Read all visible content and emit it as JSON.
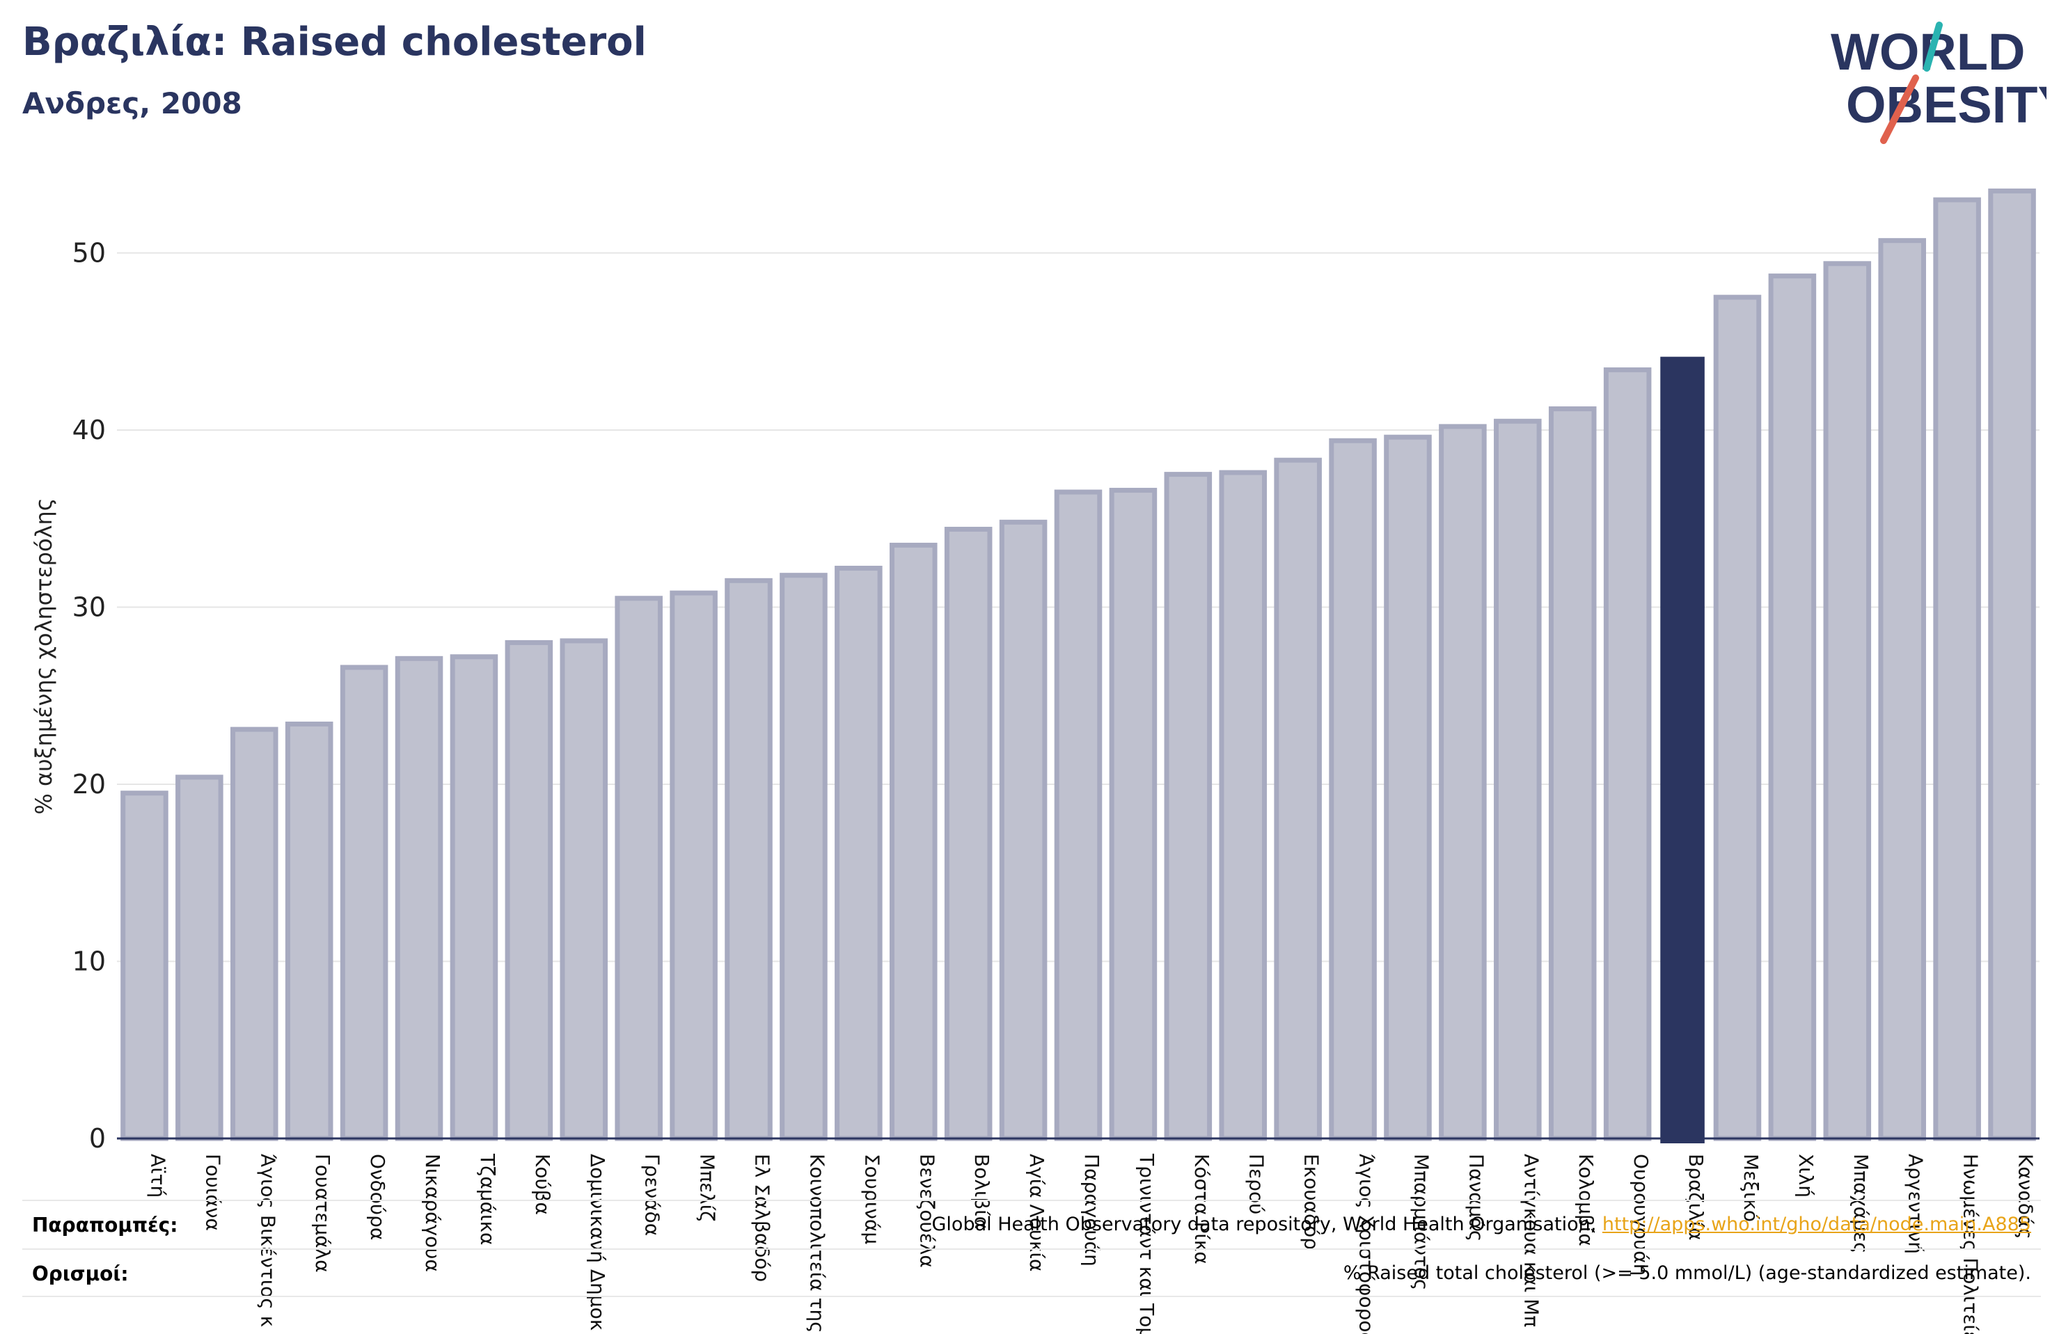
{
  "header": {
    "title": "Βραζιλία: Raised cholesterol",
    "subtitle": "Ανδρες, 2008"
  },
  "logo": {
    "line1": "WORLD",
    "line2": "OBESITY"
  },
  "colors": {
    "highlight": "#2b3560",
    "bar_fill": "#bfc1cf",
    "bar_stroke": "#a7aac0",
    "grid": "#e6e6e6",
    "axis": "#2b3560",
    "logo_teal": "#2ab3b1",
    "logo_red": "#e0614d",
    "link": "#e8a419"
  },
  "chart_data": {
    "type": "bar",
    "ylabel": "% αυξημένης χοληστερόλης",
    "ylim": [
      0,
      55
    ],
    "yticks": [
      0,
      10,
      20,
      30,
      40,
      50
    ],
    "grid": true,
    "highlight_category": "Βραζιλία",
    "categories": [
      "Αϊτή",
      "Γουιάνα",
      "Άγιος Βικέντιος κ",
      "Γουατεμάλα",
      "Ονδούρα",
      "Νικαράγουα",
      "Τζαμάικα",
      "Κούβα",
      "Δομινικανή Δημοκ",
      "Γρενάδα",
      "Μπελίζ",
      "Ελ Σαλβαδόρ",
      "Κοινοπολιτεία της",
      "Σουρινάμ",
      "Βενεζουέλα",
      "Βολιβία",
      "Αγία Λουκία",
      "Παραγουάη",
      "Τρινιντάντ και Τομ",
      "Κόστα Ρίκα",
      "Περού",
      "Εκουαδόρ",
      "Άγιος Χριστόφορος",
      "Μπαρμπάντος",
      "Παναμάς",
      "Αντίγκουα και Μπ",
      "Κολομβία",
      "Ουρουγουάη",
      "Βραζιλία",
      "Μεξικό",
      "Χιλή",
      "Μπαχάμες",
      "Αργεντινή",
      "Ηνωμένες Πολιτείες",
      "Καναδάς"
    ],
    "values": [
      19.5,
      20.4,
      23.1,
      23.4,
      26.6,
      27.1,
      27.2,
      28.0,
      28.1,
      30.5,
      30.8,
      31.5,
      31.8,
      32.2,
      33.5,
      34.4,
      34.8,
      36.5,
      36.6,
      37.5,
      37.6,
      38.3,
      39.4,
      39.6,
      40.2,
      40.5,
      41.2,
      43.4,
      44.1,
      47.5,
      48.7,
      49.4,
      50.7,
      53.0,
      53.5
    ]
  },
  "footer": {
    "references_label": "Παραπομπές:",
    "references_text": "Global Health Observatory data repository, World Health Organisation, ",
    "references_link": "http://apps.who.int/gho/data/node.main.A885",
    "definitions_label": "Ορισμοί:",
    "definitions_text": "% Raised total cholesterol (>= 5.0 mmol/L) (age-standardized estimate)."
  }
}
